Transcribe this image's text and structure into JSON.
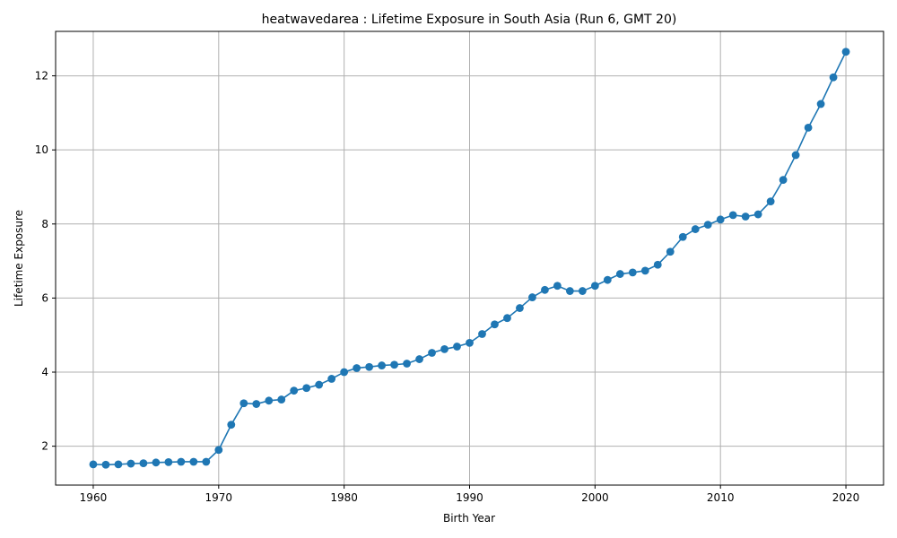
{
  "chart_data": {
    "type": "line",
    "title": "heatwavedarea : Lifetime Exposure in South Asia (Run 6, GMT 20)",
    "xlabel": "Birth Year",
    "ylabel": "Lifetime Exposure",
    "xlim": [
      1957,
      2023
    ],
    "ylim": [
      0.95,
      13.2
    ],
    "xticks": [
      1960,
      1970,
      1980,
      1990,
      2000,
      2010,
      2020
    ],
    "yticks": [
      2,
      4,
      6,
      8,
      10,
      12
    ],
    "grid": true,
    "colors": {
      "series": "#1f77b4",
      "grid": "#b0b0b0"
    },
    "x": [
      1960,
      1961,
      1962,
      1963,
      1964,
      1965,
      1966,
      1967,
      1968,
      1969,
      1970,
      1971,
      1972,
      1973,
      1974,
      1975,
      1976,
      1977,
      1978,
      1979,
      1980,
      1981,
      1982,
      1983,
      1984,
      1985,
      1986,
      1987,
      1988,
      1989,
      1990,
      1991,
      1992,
      1993,
      1994,
      1995,
      1996,
      1997,
      1998,
      1999,
      2000,
      2001,
      2002,
      2003,
      2004,
      2005,
      2006,
      2007,
      2008,
      2009,
      2010,
      2011,
      2012,
      2013,
      2014,
      2015,
      2016,
      2017,
      2018,
      2019,
      2020
    ],
    "values": [
      1.51,
      1.5,
      1.51,
      1.53,
      1.54,
      1.56,
      1.57,
      1.58,
      1.58,
      1.58,
      1.9,
      2.58,
      3.16,
      3.14,
      3.23,
      3.26,
      3.5,
      3.57,
      3.66,
      3.82,
      4.0,
      4.11,
      4.14,
      4.18,
      4.2,
      4.23,
      4.35,
      4.52,
      4.62,
      4.69,
      4.79,
      5.03,
      5.29,
      5.46,
      5.73,
      6.02,
      6.22,
      6.33,
      6.19,
      6.19,
      6.33,
      6.49,
      6.65,
      6.69,
      6.74,
      6.9,
      7.25,
      7.65,
      7.86,
      7.98,
      8.12,
      8.24,
      8.2,
      8.26,
      8.61,
      9.19,
      9.86,
      10.6,
      11.24,
      11.96,
      12.65
    ]
  }
}
